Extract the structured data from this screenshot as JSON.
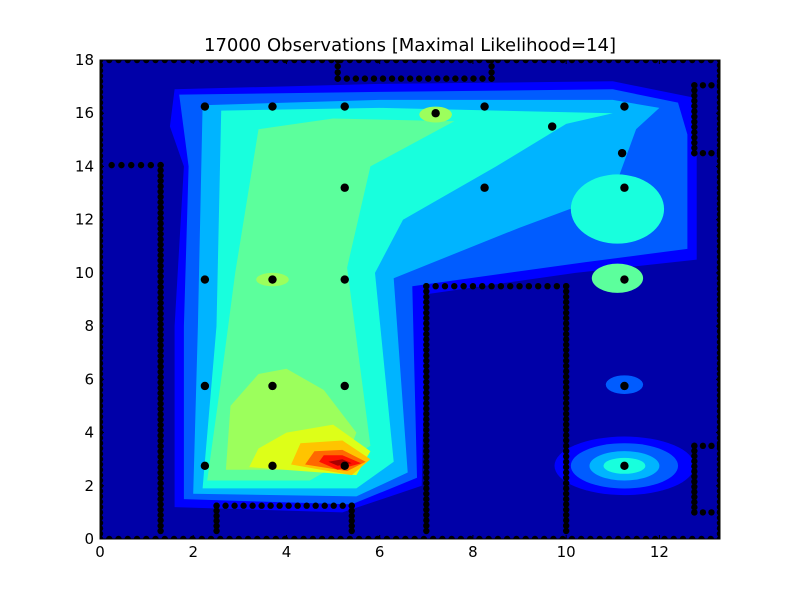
{
  "chart_data": {
    "type": "contour",
    "title": "17000 Observations [Maximal Likelihood=14]",
    "xlim": [
      0,
      13.3
    ],
    "ylim": [
      0,
      18
    ],
    "x_ticks": [
      "0",
      "2",
      "4",
      "6",
      "8",
      "10",
      "12"
    ],
    "y_ticks": [
      "0",
      "2",
      "4",
      "6",
      "8",
      "10",
      "12",
      "14",
      "16",
      "18"
    ],
    "colormap": "jet",
    "background_color": "#0000a8",
    "peak_x": 5.1,
    "peak_y": 2.85,
    "observation_points": [
      {
        "x": 2.25,
        "y": 16.25
      },
      {
        "x": 3.7,
        "y": 16.25
      },
      {
        "x": 5.25,
        "y": 16.25
      },
      {
        "x": 7.2,
        "y": 16.0
      },
      {
        "x": 8.25,
        "y": 16.25
      },
      {
        "x": 9.7,
        "y": 15.5
      },
      {
        "x": 11.25,
        "y": 16.25
      },
      {
        "x": 11.2,
        "y": 14.5
      },
      {
        "x": 5.25,
        "y": 13.2
      },
      {
        "x": 8.25,
        "y": 13.2
      },
      {
        "x": 11.25,
        "y": 13.2
      },
      {
        "x": 2.25,
        "y": 9.75
      },
      {
        "x": 3.7,
        "y": 9.75
      },
      {
        "x": 5.25,
        "y": 9.75
      },
      {
        "x": 11.25,
        "y": 9.75
      },
      {
        "x": 2.25,
        "y": 5.75
      },
      {
        "x": 3.7,
        "y": 5.75
      },
      {
        "x": 5.25,
        "y": 5.75
      },
      {
        "x": 11.25,
        "y": 5.75
      },
      {
        "x": 2.25,
        "y": 2.75
      },
      {
        "x": 3.7,
        "y": 2.75
      },
      {
        "x": 5.25,
        "y": 2.75
      },
      {
        "x": 11.25,
        "y": 2.75
      }
    ],
    "wall_segments": [
      {
        "x1": 0,
        "y1": 18,
        "x2": 13.3,
        "y2": 18
      },
      {
        "x1": 0,
        "y1": 0,
        "x2": 0,
        "y2": 18
      },
      {
        "x1": 13.3,
        "y1": 0,
        "x2": 13.3,
        "y2": 18
      },
      {
        "x1": 0,
        "y1": 0,
        "x2": 13.3,
        "y2": 0
      },
      {
        "x1": 0.25,
        "y1": 14.05,
        "x2": 1.3,
        "y2": 14.05
      },
      {
        "x1": 1.3,
        "y1": 0.3,
        "x2": 1.3,
        "y2": 14.05
      },
      {
        "x1": 2.5,
        "y1": 0.3,
        "x2": 2.5,
        "y2": 1.25
      },
      {
        "x1": 2.5,
        "y1": 1.25,
        "x2": 5.4,
        "y2": 1.25
      },
      {
        "x1": 5.4,
        "y1": 0.3,
        "x2": 5.4,
        "y2": 1.25
      },
      {
        "x1": 7.0,
        "y1": 0.3,
        "x2": 7.0,
        "y2": 9.5
      },
      {
        "x1": 7.0,
        "y1": 9.5,
        "x2": 10.0,
        "y2": 9.5
      },
      {
        "x1": 10.0,
        "y1": 0.3,
        "x2": 10.0,
        "y2": 9.5
      },
      {
        "x1": 5.1,
        "y1": 17.3,
        "x2": 8.4,
        "y2": 17.3
      },
      {
        "x1": 5.1,
        "y1": 17.3,
        "x2": 5.1,
        "y2": 18
      },
      {
        "x1": 8.4,
        "y1": 17.3,
        "x2": 8.4,
        "y2": 18
      },
      {
        "x1": 12.75,
        "y1": 14.5,
        "x2": 12.75,
        "y2": 17.05
      },
      {
        "x1": 12.75,
        "y1": 17.05,
        "x2": 13.3,
        "y2": 17.05
      },
      {
        "x1": 12.75,
        "y1": 14.5,
        "x2": 13.3,
        "y2": 14.5
      },
      {
        "x1": 12.75,
        "y1": 1.0,
        "x2": 12.75,
        "y2": 3.5
      },
      {
        "x1": 12.75,
        "y1": 3.5,
        "x2": 13.3,
        "y2": 3.5
      },
      {
        "x1": 12.75,
        "y1": 1.0,
        "x2": 13.3,
        "y2": 1.0
      }
    ]
  }
}
